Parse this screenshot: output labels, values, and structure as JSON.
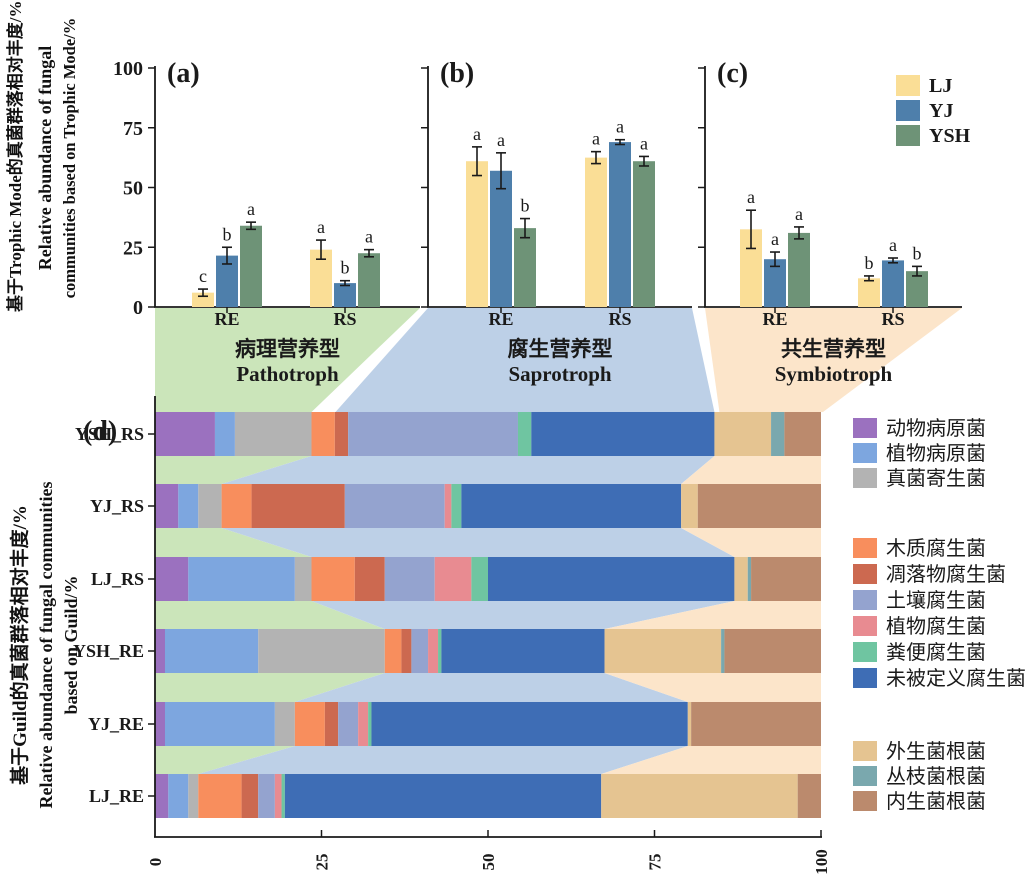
{
  "axis_labels": {
    "trophic_zh": "基于Trophic Mode的真菌群落相对丰度/%",
    "trophic_en1": "Relative abundance of fungal",
    "trophic_en2": "communities based on Trophic Mode/%",
    "guild_zh": "基于Guild的真菌群落相对丰度/%",
    "guild_en1": "Relative abundance of fungal communities",
    "guild_en2": "based on Guild/%"
  },
  "site_legend": {
    "entries": [
      {
        "label": "LJ",
        "color": "#FADE96"
      },
      {
        "label": "YJ",
        "color": "#4E7FAB"
      },
      {
        "label": "YSH",
        "color": "#6E9377"
      }
    ]
  },
  "chart_data": [
    {
      "type": "bar",
      "panel": "(a)",
      "group_zh": "病理营养型",
      "group_en": "Pathotroph",
      "flow_color": "#CBE5BA",
      "categories": [
        "RE",
        "RS"
      ],
      "ylim": [
        0,
        100
      ],
      "yticks": [
        0,
        25,
        50,
        75,
        100
      ],
      "show_ytick_labels": true,
      "series": [
        {
          "name": "LJ",
          "color": "#FADE96",
          "values": [
            6,
            24
          ],
          "errors": [
            1.5,
            4
          ],
          "letters": [
            "c",
            "a"
          ]
        },
        {
          "name": "YJ",
          "color": "#4E7FAB",
          "values": [
            21.5,
            10
          ],
          "errors": [
            3.5,
            1
          ],
          "letters": [
            "b",
            "b"
          ]
        },
        {
          "name": "YSH",
          "color": "#6E9377",
          "values": [
            34,
            22.5
          ],
          "errors": [
            1.5,
            1.5
          ],
          "letters": [
            "a",
            "a"
          ]
        }
      ]
    },
    {
      "type": "bar",
      "panel": "(b)",
      "group_zh": "腐生营养型",
      "group_en": "Saprotroph",
      "flow_color": "#BDD0E7",
      "categories": [
        "RE",
        "RS"
      ],
      "ylim": [
        0,
        100
      ],
      "yticks": [
        0,
        25,
        50,
        75,
        100
      ],
      "show_ytick_labels": false,
      "series": [
        {
          "name": "LJ",
          "color": "#FADE96",
          "values": [
            61,
            62.5
          ],
          "errors": [
            6,
            2.5
          ],
          "letters": [
            "a",
            "a"
          ]
        },
        {
          "name": "YJ",
          "color": "#4E7FAB",
          "values": [
            57,
            69
          ],
          "errors": [
            7.5,
            1
          ],
          "letters": [
            "a",
            "a"
          ]
        },
        {
          "name": "YSH",
          "color": "#6E9377",
          "values": [
            33,
            61
          ],
          "errors": [
            4,
            2
          ],
          "letters": [
            "b",
            "a"
          ]
        }
      ]
    },
    {
      "type": "bar",
      "panel": "(c)",
      "group_zh": "共生营养型",
      "group_en": "Symbiotroph",
      "flow_color": "#FCE5CA",
      "categories": [
        "RE",
        "RS"
      ],
      "ylim": [
        0,
        100
      ],
      "yticks": [
        0,
        25,
        50,
        75,
        100
      ],
      "show_ytick_labels": false,
      "series": [
        {
          "name": "LJ",
          "color": "#FADE96",
          "values": [
            32.5,
            12
          ],
          "errors": [
            8,
            1
          ],
          "letters": [
            "a",
            "b"
          ]
        },
        {
          "name": "YJ",
          "color": "#4E7FAB",
          "values": [
            20,
            19.5
          ],
          "errors": [
            3,
            1
          ],
          "letters": [
            "a",
            "a"
          ]
        },
        {
          "name": "YSH",
          "color": "#6E9377",
          "values": [
            31,
            15
          ],
          "errors": [
            2.5,
            2
          ],
          "letters": [
            "a",
            "b"
          ]
        }
      ]
    },
    {
      "type": "stacked-bar-horizontal",
      "panel": "(d)",
      "xlim": [
        0,
        100
      ],
      "xticks": [
        0,
        25,
        50,
        75,
        100
      ],
      "rows": [
        "YSH_RS",
        "YJ_RS",
        "LJ_RS",
        "YSH_RE",
        "YJ_RE",
        "LJ_RE"
      ],
      "guilds": [
        {
          "label": "动物病原菌",
          "color": "#9B71BF",
          "group": "pathotroph"
        },
        {
          "label": "植物病原菌",
          "color": "#7DA6DF",
          "group": "pathotroph"
        },
        {
          "label": "真菌寄生菌",
          "color": "#B3B3B3",
          "group": "pathotroph"
        },
        {
          "label": "木质腐生菌",
          "color": "#F88E5D",
          "group": "saprotroph"
        },
        {
          "label": "凋落物腐生菌",
          "color": "#CC6950",
          "group": "saprotroph"
        },
        {
          "label": "土壤腐生菌",
          "color": "#94A3CF",
          "group": "saprotroph"
        },
        {
          "label": "植物腐生菌",
          "color": "#E88B91",
          "group": "saprotroph"
        },
        {
          "label": "粪便腐生菌",
          "color": "#6FC5A1",
          "group": "saprotroph"
        },
        {
          "label": "未被定义腐生菌",
          "color": "#3E6DB5",
          "group": "saprotroph"
        },
        {
          "label": "外生菌根菌",
          "color": "#E5C491",
          "group": "symbiotroph"
        },
        {
          "label": "丛枝菌根菌",
          "color": "#7AA8AE",
          "group": "symbiotroph"
        },
        {
          "label": "内生菌根菌",
          "color": "#BB8A6D",
          "group": "symbiotroph"
        }
      ],
      "values": {
        "YSH_RS": [
          9,
          3,
          11.5,
          3.5,
          2,
          25.5,
          0,
          2,
          27.5,
          8.5,
          2,
          5.5
        ],
        "YJ_RS": [
          3.5,
          3,
          3.5,
          4.5,
          14,
          15,
          1,
          1.5,
          33,
          2.5,
          0,
          18.5
        ],
        "LJ_RS": [
          5,
          16,
          2.5,
          6.5,
          4.5,
          7.5,
          5.5,
          2.5,
          37,
          2,
          0.5,
          10.5
        ],
        "YSH_RE": [
          1.5,
          14,
          19,
          2.5,
          1.5,
          2.5,
          1.5,
          0.5,
          24.5,
          17.5,
          0.5,
          14.5
        ],
        "YJ_RE": [
          1.5,
          16.5,
          3,
          4.5,
          2,
          3,
          1.5,
          0.5,
          47.5,
          0.5,
          0,
          19.5
        ],
        "LJ_RE": [
          2,
          3,
          1.5,
          6.5,
          2.5,
          2.5,
          1,
          0.5,
          47.5,
          29.5,
          0,
          3.5
        ]
      },
      "flow_colors": {
        "pathotroph": "#CBE5BA",
        "saprotroph": "#BDD0E7",
        "symbiotroph": "#FCE5CA"
      }
    }
  ]
}
